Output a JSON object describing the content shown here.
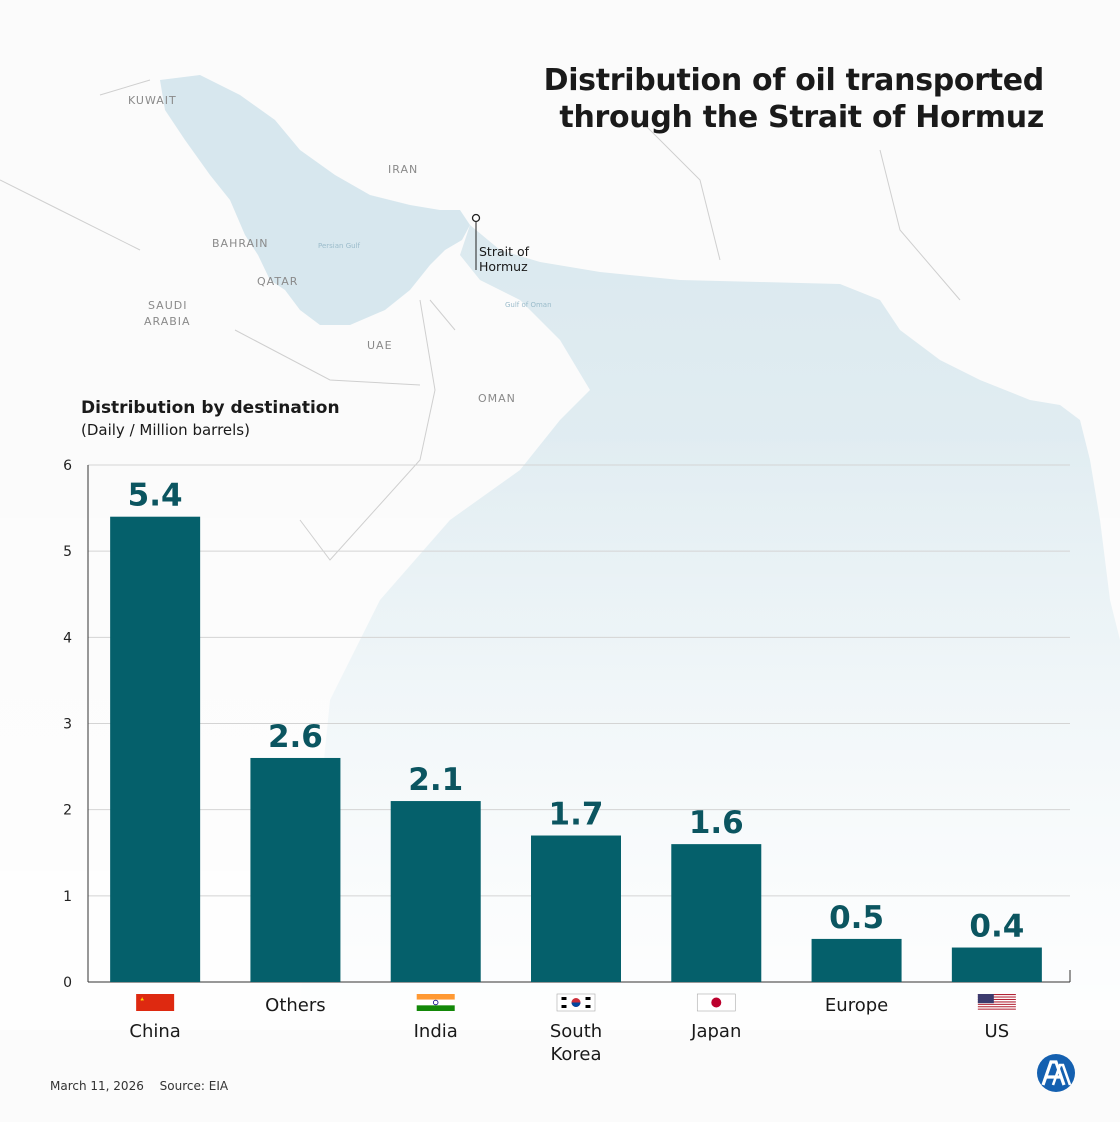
{
  "title_line1": "Distribution of oil transported",
  "title_line2": "through the Strait of Hormuz",
  "subtitle": "Distribution by destination",
  "unit": "(Daily / Million barrels)",
  "map_labels": {
    "kuwait": "KUWAIT",
    "iran": "IRAN",
    "bahrain": "BAHRAIN",
    "qatar": "QATAR",
    "saudi_1": "SAUDI",
    "saudi_2": "ARABIA",
    "uae": "UAE",
    "oman": "OMAN",
    "persian_gulf": "Persian Gulf",
    "gulf_of_oman": "Gulf of Oman",
    "strait_1": "Strait of",
    "strait_2": "Hormuz"
  },
  "colors": {
    "bar": "#05606b",
    "label": "#0b5560",
    "water": "#dceaf0",
    "grid": "#d4d4d4"
  },
  "chart_data": {
    "type": "bar",
    "categories": [
      "China",
      "Others",
      "India",
      "South Korea",
      "Japan",
      "Europe",
      "US"
    ],
    "category_lines": [
      [
        "China"
      ],
      [
        "Others"
      ],
      [
        "India"
      ],
      [
        "South",
        "Korea"
      ],
      [
        "Japan"
      ],
      [
        "Europe"
      ],
      [
        "US"
      ]
    ],
    "flags": [
      "china-flag",
      "",
      "india-flag",
      "south-korea-flag",
      "japan-flag",
      "",
      "us-flag"
    ],
    "values": [
      5.4,
      2.6,
      2.1,
      1.7,
      1.6,
      0.5,
      0.4
    ],
    "value_labels": [
      "5.4",
      "2.6",
      "2.1",
      "1.7",
      "1.6",
      "0.5",
      "0.4"
    ],
    "yticks": [
      0,
      1,
      2,
      3,
      4,
      5,
      6
    ],
    "ylim": [
      0,
      6
    ],
    "grid": true
  },
  "footer": {
    "date": "March 11, 2026",
    "source": "Source: EIA"
  },
  "logo": "AA"
}
